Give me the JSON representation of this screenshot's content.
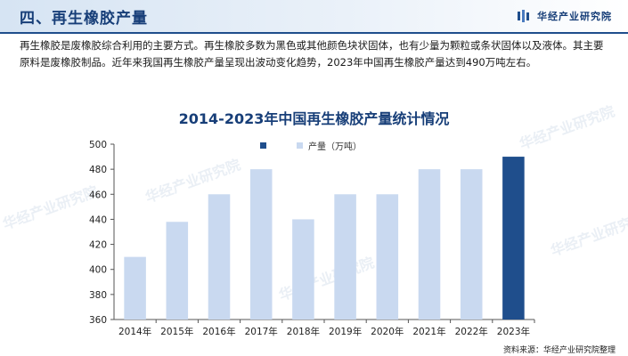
{
  "header": {
    "section_title": "四、再生橡胶产量",
    "brand": "华经产业研究院",
    "brand_logo_icon": "brand-logo-icon"
  },
  "intro": "再生橡胶是废橡胶综合利用的主要方式。再生橡胶多数为黑色或其他颜色块状固体，也有少量为颗粒或条状固体以及液体。其主要原料是废橡胶制品。近年来我国再生橡胶产量呈现出波动变化趋势，2023年中国再生橡胶产量达到490万吨左右。",
  "watermark_text": "华经产业研究院",
  "source": "资料来源：华经产业研究院整理",
  "colors": {
    "accent": "#1f4e8c",
    "bar_light": "#c9d9f0",
    "bar_dark": "#1f4e8c",
    "title": "#173e78"
  },
  "chart_data": {
    "type": "bar",
    "title": "2014-2023年中国再生橡胶产量统计情况",
    "categories": [
      "2014年",
      "2015年",
      "2016年",
      "2017年",
      "2018年",
      "2019年",
      "2020年",
      "2021年",
      "2022年",
      "2023年"
    ],
    "series": [
      {
        "name": "产量（万吨）",
        "values": [
          410,
          438,
          460,
          480,
          440,
          460,
          460,
          480,
          480,
          490
        ]
      }
    ],
    "highlight_index": 9,
    "ylim": [
      360,
      500
    ],
    "yticks": [
      360,
      380,
      400,
      420,
      440,
      460,
      480,
      500
    ],
    "grid": false,
    "legend_position": "top-center"
  }
}
